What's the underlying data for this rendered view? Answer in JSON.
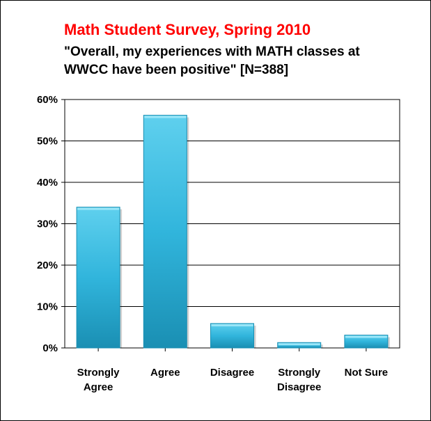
{
  "chart_data": {
    "type": "bar",
    "title": "Math Student Survey, Spring 2010",
    "subtitle_lines": [
      "\"Overall, my experiences with MATH classes at",
      "WWCC have been positive\"   [N=388]"
    ],
    "categories": [
      [
        "Strongly",
        "Agree"
      ],
      [
        "Agree"
      ],
      [
        "Disagree"
      ],
      [
        "Strongly",
        "Disagree"
      ],
      [
        "Not Sure"
      ]
    ],
    "values": [
      34,
      56.2,
      5.9,
      1.3,
      3.1
    ],
    "yticks": [
      "0%",
      "10%",
      "20%",
      "30%",
      "40%",
      "50%",
      "60%"
    ],
    "ylim": [
      0,
      60
    ],
    "grid": true,
    "legend": "none",
    "colors": {
      "title": "#ff0000",
      "bar_light": "#5fd0ee",
      "bar_mid": "#31b5dc",
      "bar_dark": "#1a8fb3",
      "grid": "#000000"
    }
  }
}
